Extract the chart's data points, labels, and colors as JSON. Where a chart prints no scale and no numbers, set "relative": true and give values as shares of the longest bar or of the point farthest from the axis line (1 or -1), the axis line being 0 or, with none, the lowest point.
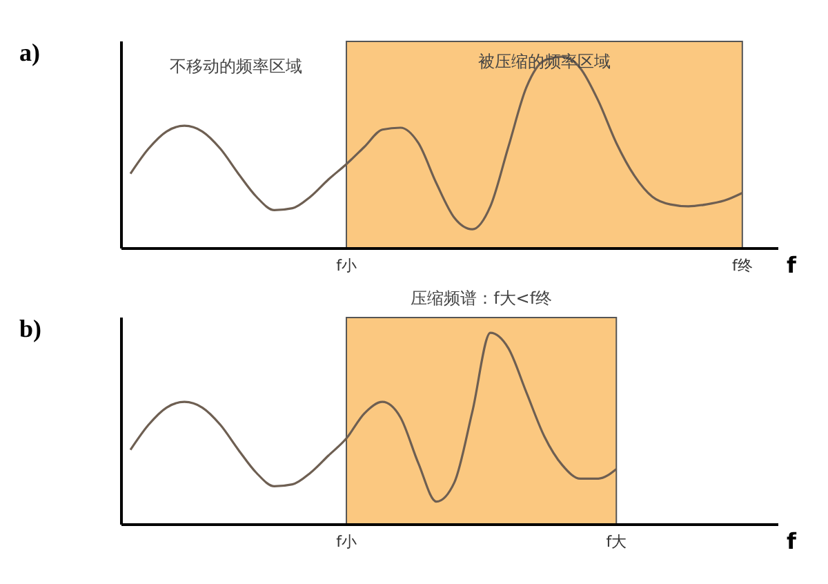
{
  "chart_data": [
    {
      "type": "line",
      "title": "a)",
      "xlabel": "f",
      "relative": true,
      "marker": "none",
      "annotations": [
        "不移动的频率区域"
      ],
      "categories": [
        null,
        null,
        null,
        null,
        null,
        null,
        null,
        null,
        null,
        null,
        null,
        null,
        "f小",
        null,
        null,
        null,
        null,
        null,
        null,
        null,
        null,
        null,
        null,
        null,
        null,
        null,
        null,
        null,
        null,
        null,
        null,
        null,
        null,
        null,
        "f终",
        null,
        null
      ],
      "series": [
        {
          "color": "#6e5f52",
          "values": [
            0.39,
            0.52,
            0.61,
            0.64,
            0.61,
            0.52,
            0.39,
            0.27,
            0.2,
            0.21,
            0.27,
            0.36,
            0.44,
            0.53,
            0.62,
            0.63,
            0.55,
            0.34,
            0.16,
            0.1,
            0.22,
            0.53,
            0.84,
            0.98,
            1.0,
            0.94,
            0.77,
            0.55,
            0.38,
            0.27,
            0.23,
            0.22,
            0.23,
            0.25,
            0.29,
            null,
            null
          ]
        }
      ],
      "bands": [
        {
          "axis": "x",
          "from": "f小",
          "to": "f终",
          "label": "被压缩的频率区域",
          "color": "#fbc880"
        }
      ]
    },
    {
      "type": "line",
      "title": "b)",
      "xlabel": "f",
      "relative": true,
      "marker": "none",
      "categories": [
        null,
        null,
        null,
        null,
        null,
        null,
        null,
        null,
        null,
        null,
        null,
        null,
        "f小",
        null,
        null,
        null,
        null,
        null,
        null,
        null,
        null,
        null,
        null,
        null,
        null,
        null,
        null,
        "f大",
        null,
        null,
        null,
        null,
        null,
        null,
        null,
        null,
        null
      ],
      "series": [
        {
          "color": "#6e5f52",
          "values": [
            0.39,
            0.52,
            0.61,
            0.64,
            0.61,
            0.52,
            0.39,
            0.27,
            0.2,
            0.21,
            0.27,
            0.36,
            0.45,
            0.58,
            0.64,
            0.56,
            0.32,
            0.12,
            0.22,
            0.59,
            1.0,
            0.92,
            0.69,
            0.46,
            0.31,
            0.24,
            0.24,
            0.29,
            null,
            null,
            null,
            null,
            null,
            null,
            null,
            null,
            null
          ]
        }
      ],
      "bands": [
        {
          "axis": "x",
          "from": "f小",
          "to": "f大",
          "label": "压缩频谱：f大<f终",
          "color": "#fbc880"
        }
      ]
    }
  ]
}
